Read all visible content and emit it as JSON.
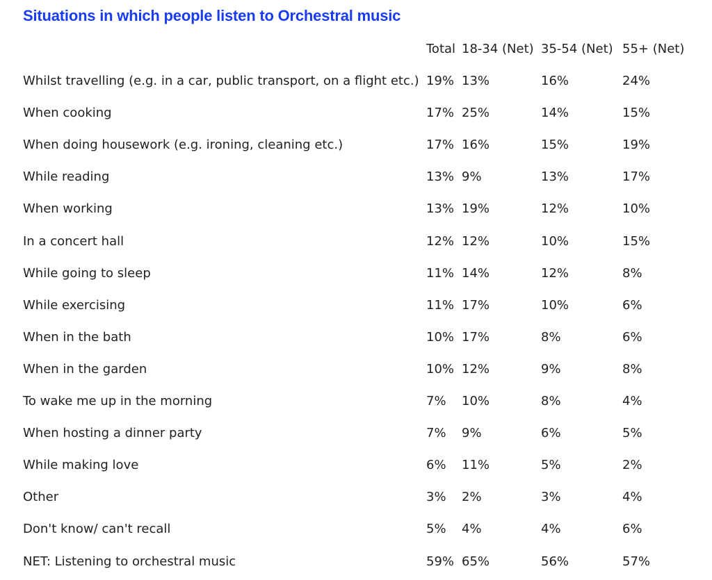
{
  "title": "Situations in which people listen to Orchestral music",
  "colors": {
    "title": "#1a3cf0",
    "text": "#222222",
    "background": "#ffffff"
  },
  "chart_data": {
    "type": "table",
    "title": "Situations in which people listen to Orchestral music",
    "columns": [
      "",
      "Total",
      "18-34 (Net)",
      "35-54 (Net)",
      "55+ (Net)"
    ],
    "rows": [
      {
        "label": "Whilst travelling (e.g. in a car, public transport, on a flight etc.)",
        "total": "19%",
        "age_18_34": "13%",
        "age_35_54": "16%",
        "age_55_plus": "24%"
      },
      {
        "label": "When cooking",
        "total": "17%",
        "age_18_34": "25%",
        "age_35_54": "14%",
        "age_55_plus": "15%"
      },
      {
        "label": "When doing housework (e.g. ironing, cleaning etc.)",
        "total": "17%",
        "age_18_34": "16%",
        "age_35_54": "15%",
        "age_55_plus": "19%"
      },
      {
        "label": "While reading",
        "total": "13%",
        "age_18_34": "9%",
        "age_35_54": "13%",
        "age_55_plus": "17%"
      },
      {
        "label": "When working",
        "total": "13%",
        "age_18_34": "19%",
        "age_35_54": "12%",
        "age_55_plus": "10%"
      },
      {
        "label": "In a concert hall",
        "total": "12%",
        "age_18_34": "12%",
        "age_35_54": "10%",
        "age_55_plus": "15%"
      },
      {
        "label": "While going to sleep",
        "total": "11%",
        "age_18_34": "14%",
        "age_35_54": "12%",
        "age_55_plus": "8%"
      },
      {
        "label": "While exercising",
        "total": "11%",
        "age_18_34": "17%",
        "age_35_54": "10%",
        "age_55_plus": "6%"
      },
      {
        "label": "When in the bath",
        "total": "10%",
        "age_18_34": "17%",
        "age_35_54": "8%",
        "age_55_plus": "6%"
      },
      {
        "label": "When in the garden",
        "total": "10%",
        "age_18_34": "12%",
        "age_35_54": "9%",
        "age_55_plus": "8%"
      },
      {
        "label": "To wake me up in the morning",
        "total": "7%",
        "age_18_34": "10%",
        "age_35_54": "8%",
        "age_55_plus": "4%"
      },
      {
        "label": "When hosting a dinner party",
        "total": "7%",
        "age_18_34": "9%",
        "age_35_54": "6%",
        "age_55_plus": "5%"
      },
      {
        "label": "While making love",
        "total": "6%",
        "age_18_34": "11%",
        "age_35_54": "5%",
        "age_55_plus": "2%"
      },
      {
        "label": "Other",
        "total": "3%",
        "age_18_34": "2%",
        "age_35_54": "3%",
        "age_55_plus": "4%"
      },
      {
        "label": "Don't know/ can't recall",
        "total": "5%",
        "age_18_34": "4%",
        "age_35_54": "4%",
        "age_55_plus": "6%"
      },
      {
        "label": "NET: Listening to orchestral music",
        "total": "59%",
        "age_18_34": "65%",
        "age_35_54": "56%",
        "age_55_plus": "57%"
      }
    ]
  }
}
